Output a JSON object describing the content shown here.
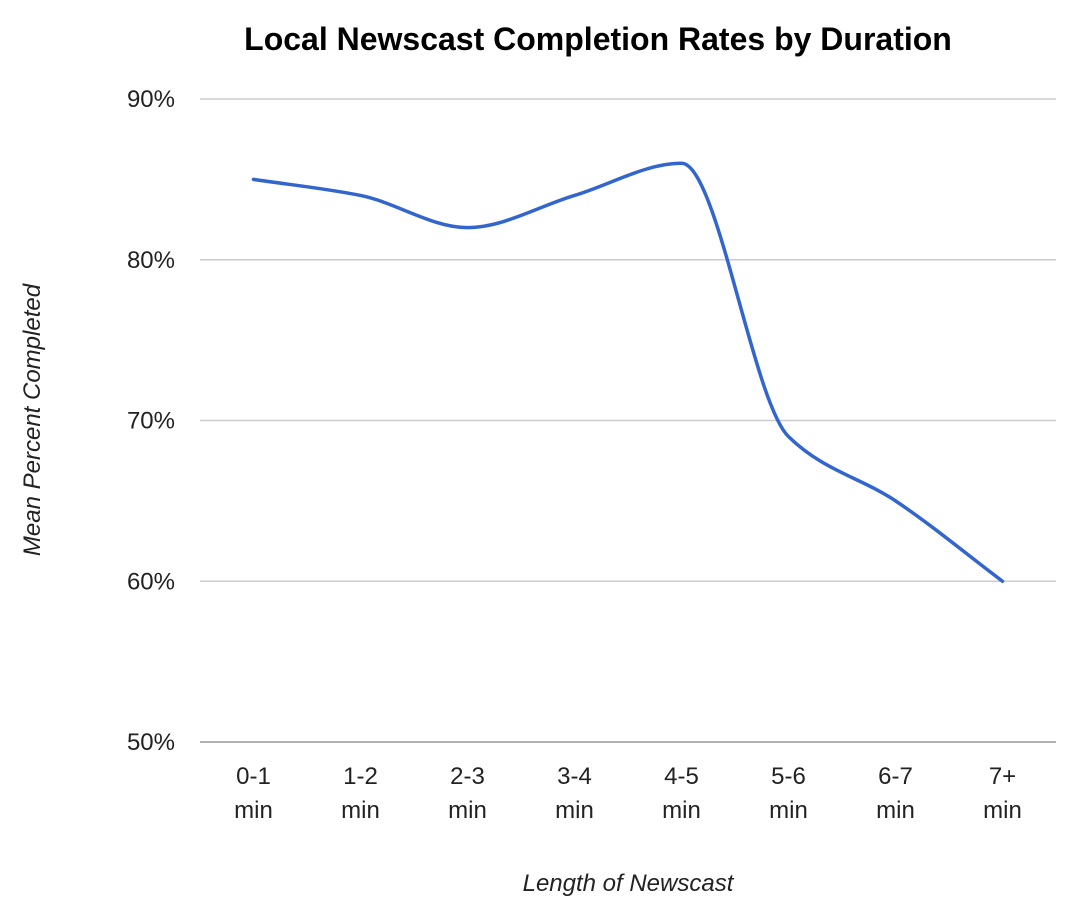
{
  "chart_data": {
    "type": "line",
    "title": "Local Newscast Completion Rates by Duration",
    "xlabel": "Length of Newscast",
    "ylabel": "Mean Percent Completed",
    "categories": [
      [
        "0-1",
        "min"
      ],
      [
        "1-2",
        "min"
      ],
      [
        "2-3",
        "min"
      ],
      [
        "3-4",
        "min"
      ],
      [
        "4-5",
        "min"
      ],
      [
        "5-6",
        "min"
      ],
      [
        "6-7",
        "min"
      ],
      [
        "7+",
        "min"
      ]
    ],
    "values": [
      85,
      84,
      82,
      84,
      86,
      69,
      65,
      60
    ],
    "value_unit": "%",
    "ylim": [
      50,
      90
    ],
    "yticks": [
      50,
      60,
      70,
      80,
      90
    ],
    "ytick_labels": [
      "50%",
      "60%",
      "70%",
      "80%",
      "90%"
    ],
    "grid": true,
    "legend": "none",
    "smooth": true,
    "line_color": "#3366cc"
  }
}
